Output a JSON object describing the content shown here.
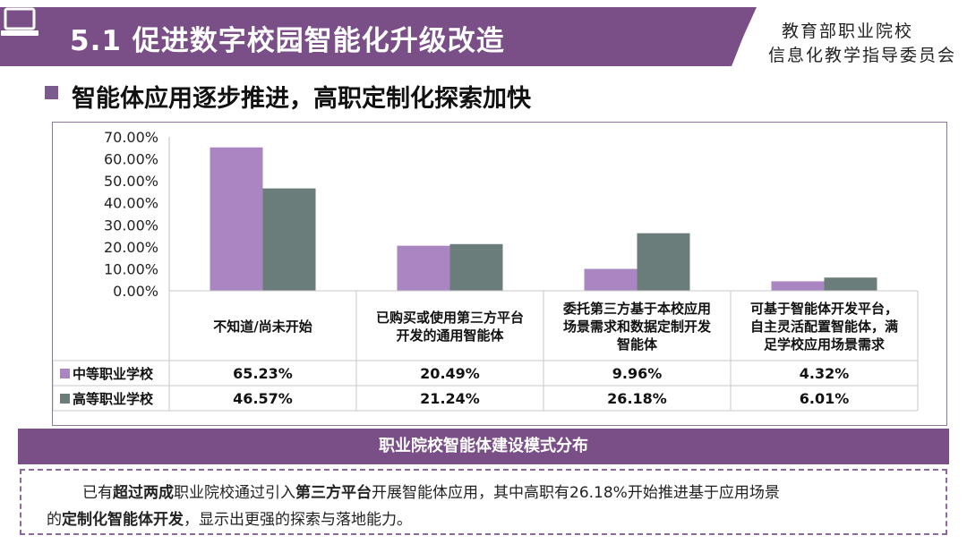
{
  "header": {
    "title": "5.1 促进数字校园智能化升级改造",
    "org_line1": "教育部职业院校",
    "org_line2": "信息化教学指导委员会",
    "banner_color": "#7a4f87"
  },
  "subheading": "智能体应用逐步推进，高职定制化探索加快",
  "chart_data": {
    "type": "bar",
    "title": "",
    "categories": [
      [
        "不知道/尚未开始"
      ],
      [
        "已购买或使用第三方平台",
        "开发的通用智能体"
      ],
      [
        "委托第三方基于本校应用",
        "场景需求和数据定制开发",
        "智能体"
      ],
      [
        "可基于智能体开发平台，",
        "自主灵活配置智能体，满",
        "足学校应用场景需求"
      ]
    ],
    "series": [
      {
        "name": "中等职业学校",
        "values": [
          65.23,
          20.49,
          9.96,
          4.32
        ],
        "labels": [
          "65.23%",
          "20.49%",
          "9.96%",
          "4.32%"
        ],
        "color": "#a986c2"
      },
      {
        "name": "高等职业学校",
        "values": [
          46.57,
          21.24,
          26.18,
          6.01
        ],
        "labels": [
          "46.57%",
          "21.24%",
          "26.18%",
          "6.01%"
        ],
        "color": "#6b7d7a"
      }
    ],
    "y_ticks": [
      "0.00%",
      "10.00%",
      "20.00%",
      "30.00%",
      "40.00%",
      "50.00%",
      "60.00%",
      "70.00%"
    ],
    "ylim": [
      0,
      70
    ],
    "grid": false,
    "legend": "data-table"
  },
  "caption": "职业院校智能体建设模式分布",
  "summary": {
    "p1": "已有",
    "b1": "超过两成",
    "p2": "职业院校通过引入",
    "b2": "第三方平台",
    "p3": "开展智能体应用，其中高职有26.18%开始推进基于应用场景",
    "p4": "的",
    "b3": "定制化智能体开发",
    "p5": "，显示出更强的探索与落地能力。"
  }
}
